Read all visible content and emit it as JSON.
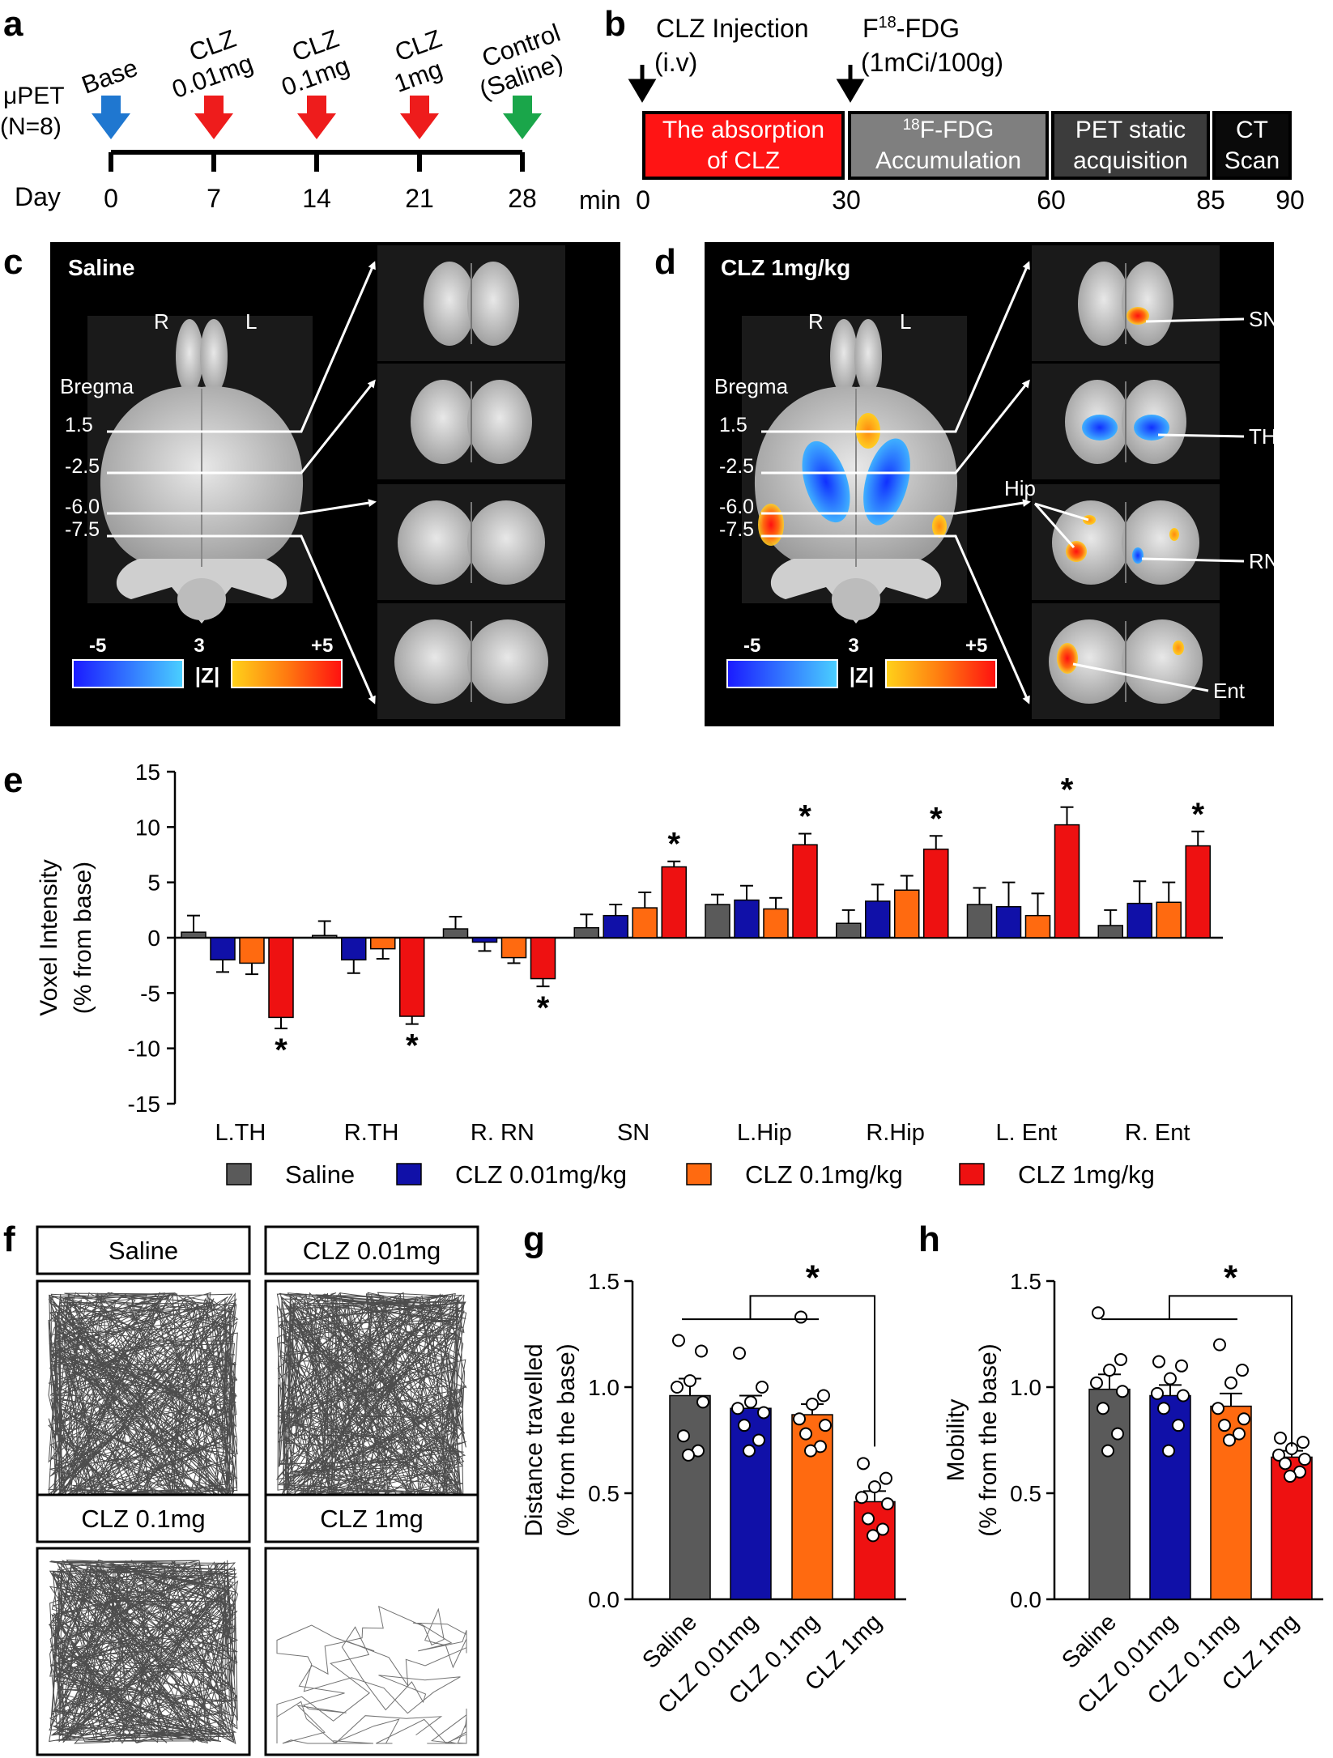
{
  "panel_labels": {
    "a": "a",
    "b": "b",
    "c": "c",
    "d": "d",
    "e": "e",
    "f": "f",
    "g": "g",
    "h": "h"
  },
  "panel_a": {
    "ylabel_1": "μPET",
    "ylabel_2": "(N=8)",
    "day_label": "Day",
    "days": [
      "0",
      "7",
      "14",
      "21",
      "28"
    ],
    "arrow_labels": [
      {
        "lines": [
          "Base"
        ],
        "color": "#1f77d0"
      },
      {
        "lines": [
          "CLZ",
          "0.01mg"
        ],
        "color": "#ee1c1c"
      },
      {
        "lines": [
          "CLZ",
          "0.1mg"
        ],
        "color": "#ee1c1c"
      },
      {
        "lines": [
          "CLZ",
          "1mg"
        ],
        "color": "#ee1c1c"
      },
      {
        "lines": [
          "Control",
          "(Saline)"
        ],
        "color": "#1aa64a"
      }
    ]
  },
  "panel_b": {
    "injection_1": "CLZ Injection",
    "injection_2": "(i.v)",
    "fdg_1": "F",
    "fdg_sup": "18",
    "fdg_2": "-FDG",
    "fdg_dose": "(1mCi/100g)",
    "min_label": "min",
    "box1": [
      "The absorption",
      "of CLZ"
    ],
    "box2_sup": "18",
    "box2": [
      "F-FDG",
      "Accumulation"
    ],
    "box3": [
      "PET static",
      "acquisition"
    ],
    "box4": [
      "CT",
      "Scan"
    ],
    "ticks": [
      "0",
      "30",
      "60",
      "85",
      "90"
    ]
  },
  "panel_c": {
    "title": "Saline",
    "r": "R",
    "l": "L",
    "bregma": "Bregma",
    "levels": [
      "1.5",
      "-2.5",
      "-6.0",
      "-7.5"
    ],
    "scale_min": "-5",
    "scale_mid": "3",
    "scale_max": "+5",
    "scale_z": "|Z|"
  },
  "panel_d": {
    "title": "CLZ 1mg/kg",
    "r": "R",
    "l": "L",
    "bregma": "Bregma",
    "levels": [
      "1.5",
      "-2.5",
      "-6.0",
      "-7.5"
    ],
    "scale_min": "-5",
    "scale_mid": "3",
    "scale_max": "+5",
    "scale_z": "|Z|",
    "regions": [
      "SN",
      "TH",
      "Hip",
      "RN",
      "Ent"
    ]
  },
  "panel_f": {
    "titles": [
      "Saline",
      "CLZ 0.01mg",
      "CLZ 0.1mg",
      "CLZ 1mg"
    ]
  },
  "colors": {
    "saline": "#5a5a5a",
    "clz001": "#1010a8",
    "clz01": "#ff6a10",
    "clz1": "#ee1111"
  },
  "chart_data": [
    {
      "id": "e",
      "type": "bar",
      "ylabel": "Voxel Intensity",
      "ylabel2": "(% from base)",
      "ylim": [
        -15,
        15
      ],
      "yticks": [
        -15,
        -10,
        -5,
        0,
        5,
        10,
        15
      ],
      "categories": [
        "L.TH",
        "R.TH",
        "R. RN",
        "SN",
        "L.Hip",
        "R.Hip",
        "L. Ent",
        "R. Ent"
      ],
      "series": [
        {
          "name": "Saline",
          "color": "#5a5a5a",
          "values": [
            0.5,
            0.2,
            0.8,
            0.9,
            3.0,
            1.3,
            3.0,
            1.1
          ],
          "errors": [
            1.5,
            1.3,
            1.1,
            1.2,
            0.9,
            1.2,
            1.5,
            1.4
          ]
        },
        {
          "name": "CLZ 0.01mg/kg",
          "color": "#1010a8",
          "values": [
            -2.0,
            -2.0,
            -0.4,
            2.0,
            3.4,
            3.3,
            2.8,
            3.1
          ],
          "errors": [
            1.1,
            1.2,
            0.8,
            1.0,
            1.3,
            1.5,
            2.2,
            2.0
          ]
        },
        {
          "name": "CLZ 0.1mg/kg",
          "color": "#ff6a10",
          "values": [
            -2.3,
            -1.0,
            -1.8,
            2.7,
            2.6,
            4.3,
            2.0,
            3.2
          ],
          "errors": [
            1.0,
            0.9,
            0.5,
            1.4,
            1.0,
            1.3,
            2.0,
            1.8
          ]
        },
        {
          "name": "CLZ 1mg/kg",
          "color": "#ee1111",
          "values": [
            -7.2,
            -7.1,
            -3.7,
            6.4,
            8.4,
            8.0,
            10.2,
            8.3
          ],
          "errors": [
            1.0,
            0.7,
            0.7,
            0.5,
            1.0,
            1.2,
            1.6,
            1.3
          ]
        }
      ],
      "significance": [
        "*",
        "*",
        "*",
        "*",
        "*",
        "*",
        "*",
        "*"
      ]
    },
    {
      "id": "g",
      "type": "bar",
      "ylabel": "Distance travelled",
      "ylabel2": "(% from the base)",
      "ylim": [
        0,
        1.5
      ],
      "yticks": [
        "0.0",
        "0.5",
        "1.0",
        "1.5"
      ],
      "categories": [
        "Saline",
        "CLZ 0.01mg",
        "CLZ 0.1mg",
        "CLZ 1mg"
      ],
      "values": [
        0.96,
        0.9,
        0.87,
        0.46
      ],
      "errors": [
        0.08,
        0.06,
        0.05,
        0.05
      ],
      "points": [
        [
          1.22,
          1.17,
          1.03,
          1.0,
          0.93,
          0.77,
          0.7,
          0.68
        ],
        [
          1.16,
          1.0,
          0.93,
          0.9,
          0.88,
          0.82,
          0.75,
          0.7
        ],
        [
          1.33,
          0.96,
          0.92,
          0.85,
          0.82,
          0.78,
          0.72,
          0.7
        ],
        [
          0.64,
          0.57,
          0.53,
          0.48,
          0.45,
          0.38,
          0.33,
          0.3
        ]
      ],
      "significance": "*"
    },
    {
      "id": "h",
      "type": "bar",
      "ylabel": "Mobility",
      "ylabel2": "(% from the base)",
      "ylim": [
        0,
        1.5
      ],
      "yticks": [
        "0.0",
        "0.5",
        "1.0",
        "1.5"
      ],
      "categories": [
        "Saline",
        "CLZ 0.01mg",
        "CLZ 0.1mg",
        "CLZ 1mg"
      ],
      "values": [
        0.99,
        0.96,
        0.91,
        0.67
      ],
      "errors": [
        0.07,
        0.05,
        0.06,
        0.03
      ],
      "points": [
        [
          1.35,
          1.13,
          1.08,
          1.02,
          0.98,
          0.9,
          0.78,
          0.7
        ],
        [
          1.12,
          1.1,
          1.04,
          0.97,
          0.96,
          0.9,
          0.82,
          0.7
        ],
        [
          1.2,
          1.08,
          1.02,
          0.9,
          0.85,
          0.82,
          0.78,
          0.75
        ],
        [
          0.76,
          0.74,
          0.71,
          0.68,
          0.66,
          0.64,
          0.6,
          0.58
        ]
      ],
      "significance": "*"
    }
  ]
}
